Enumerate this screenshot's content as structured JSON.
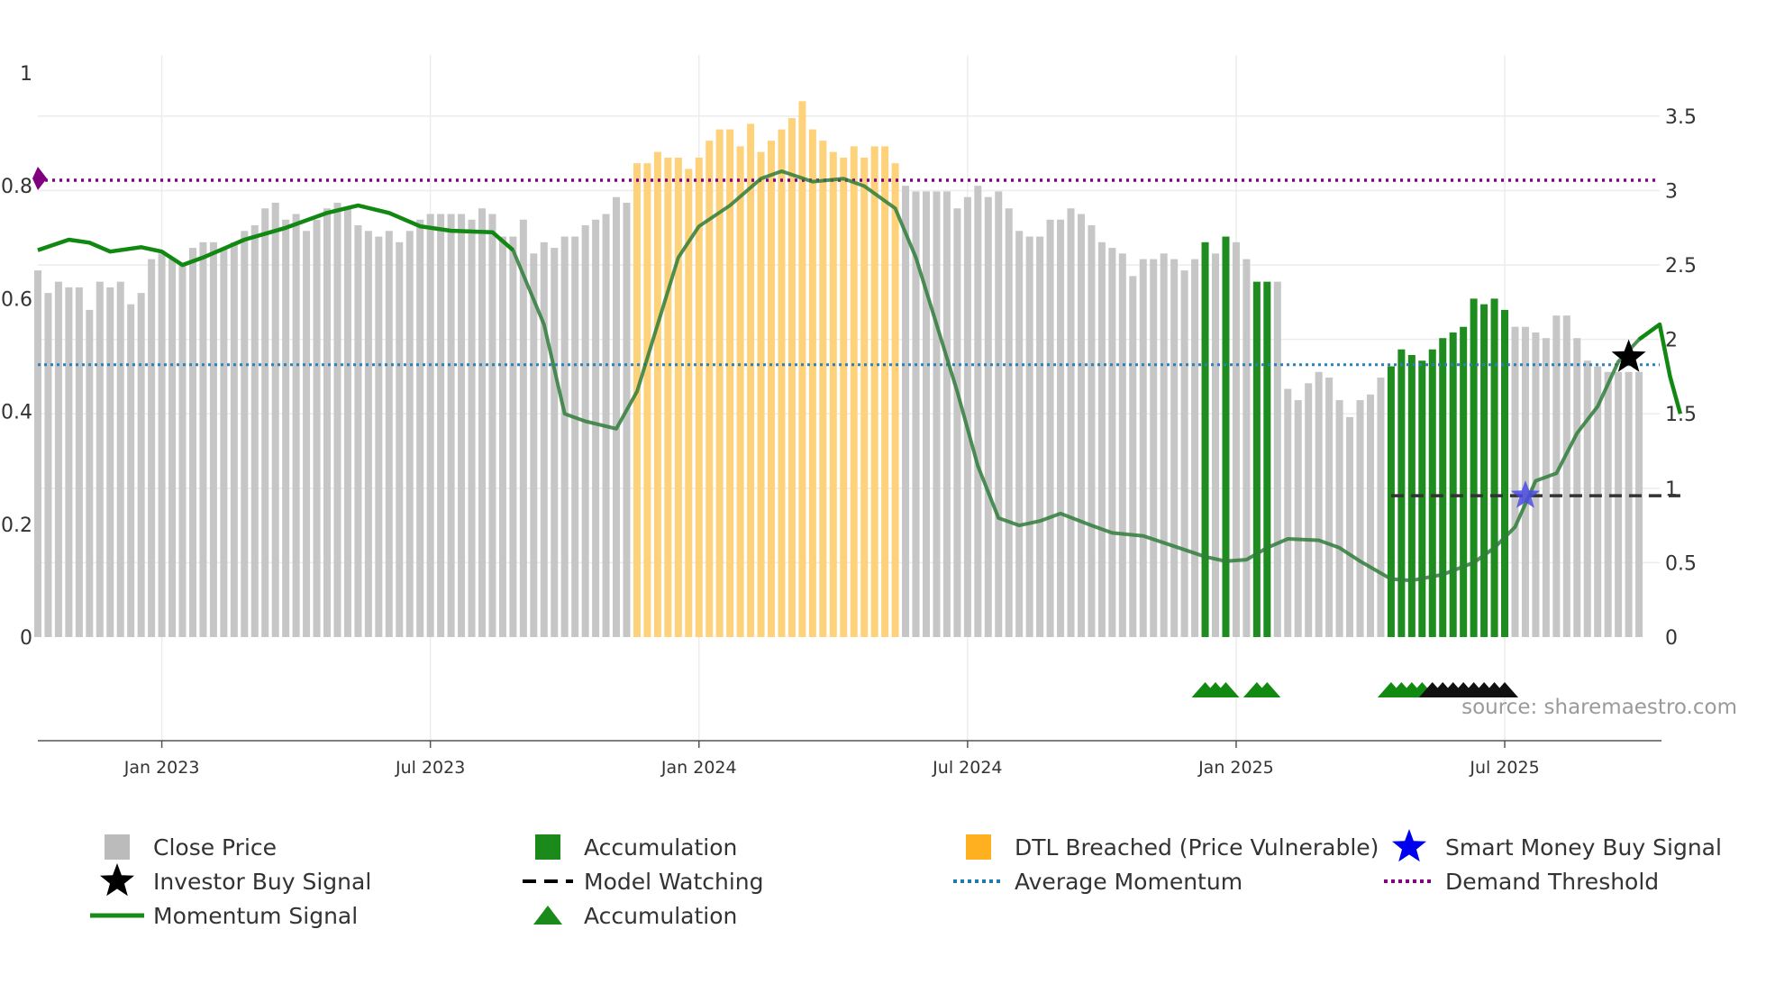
{
  "chart_data": {
    "type": "bar+line",
    "title": "",
    "source": "source: sharemaestro.com",
    "left_axis": {
      "ticks": [
        "0",
        "0.2",
        "0.4",
        "0.6",
        "0.8",
        "1"
      ],
      "values": [
        0,
        0.2,
        0.4,
        0.6,
        0.8,
        1
      ],
      "range": [
        0,
        1
      ]
    },
    "right_axis": {
      "ticks": [
        "0",
        "0.5",
        "1",
        "1.5",
        "2",
        "2.5",
        "3",
        "3.5"
      ],
      "values": [
        0,
        0.5,
        1,
        1.5,
        2,
        2.5,
        3,
        3.5
      ],
      "range": [
        0,
        3.79
      ]
    },
    "x_axis": {
      "ticks": [
        "Jan 2023",
        "Jul 2023",
        "Jan 2024",
        "Jul 2024",
        "Jan 2025",
        "Jul 2025"
      ],
      "tick_index": [
        12,
        38,
        64,
        90,
        116,
        142
      ],
      "range_index": [
        0,
        157
      ]
    },
    "weeks_start": "2022-10",
    "price_weekly": [
      0.65,
      0.61,
      0.63,
      0.62,
      0.62,
      0.58,
      0.63,
      0.62,
      0.63,
      0.59,
      0.61,
      0.67,
      0.68,
      0.67,
      0.66,
      0.69,
      0.7,
      0.7,
      0.69,
      0.7,
      0.72,
      0.73,
      0.76,
      0.77,
      0.74,
      0.75,
      0.72,
      0.74,
      0.76,
      0.77,
      0.76,
      0.73,
      0.72,
      0.71,
      0.72,
      0.7,
      0.72,
      0.74,
      0.75,
      0.75,
      0.75,
      0.75,
      0.74,
      0.76,
      0.75,
      0.71,
      0.71,
      0.74,
      0.68,
      0.7,
      0.69,
      0.71,
      0.71,
      0.73,
      0.74,
      0.75,
      0.78,
      0.77,
      0.84,
      0.84,
      0.86,
      0.85,
      0.85,
      0.83,
      0.85,
      0.88,
      0.9,
      0.9,
      0.87,
      0.91,
      0.86,
      0.88,
      0.9,
      0.92,
      0.95,
      0.9,
      0.88,
      0.86,
      0.85,
      0.87,
      0.85,
      0.87,
      0.87,
      0.84,
      0.8,
      0.79,
      0.79,
      0.79,
      0.79,
      0.76,
      0.78,
      0.8,
      0.78,
      0.79,
      0.76,
      0.72,
      0.71,
      0.71,
      0.74,
      0.74,
      0.76,
      0.75,
      0.73,
      0.7,
      0.69,
      0.68,
      0.64,
      0.67,
      0.67,
      0.68,
      0.67,
      0.65,
      0.67,
      0.7,
      0.68,
      0.71,
      0.7,
      0.67,
      0.63,
      0.63,
      0.63,
      0.44,
      0.42,
      0.45,
      0.47,
      0.46,
      0.42,
      0.39,
      0.42,
      0.43,
      0.46,
      0.48,
      0.51,
      0.5,
      0.49,
      0.51,
      0.53,
      0.54,
      0.55,
      0.6,
      0.59,
      0.6,
      0.58,
      0.55,
      0.55,
      0.54,
      0.53,
      0.57,
      0.57,
      0.53,
      0.49,
      0.48,
      0.47,
      0.47,
      0.47,
      0.47
    ],
    "zones": [
      {
        "label": "DTL Breached (Price Vulnerable)",
        "color": "#f5b400",
        "from_index": 58,
        "to_index": 83
      },
      {
        "label": "Accumulation",
        "color": "#1a8a1a",
        "from_index": 113,
        "to_index": 113
      },
      {
        "label": "Accumulation",
        "color": "#1a8a1a",
        "from_index": 115,
        "to_index": 115
      },
      {
        "label": "Accumulation",
        "color": "#1a8a1a",
        "from_index": 118,
        "to_index": 119
      },
      {
        "label": "Accumulation",
        "color": "#1a8a1a",
        "from_index": 131,
        "to_index": 142
      }
    ],
    "momentum_signal": [
      [
        0,
        2.6
      ],
      [
        3,
        2.67
      ],
      [
        5,
        2.65
      ],
      [
        7,
        2.59
      ],
      [
        10,
        2.62
      ],
      [
        12,
        2.59
      ],
      [
        14,
        2.5
      ],
      [
        16,
        2.55
      ],
      [
        20,
        2.67
      ],
      [
        24,
        2.75
      ],
      [
        28,
        2.85
      ],
      [
        31,
        2.9
      ],
      [
        34,
        2.85
      ],
      [
        37,
        2.76
      ],
      [
        40,
        2.73
      ],
      [
        44,
        2.72
      ],
      [
        46,
        2.6
      ],
      [
        49,
        2.1
      ],
      [
        51,
        1.5
      ],
      [
        53,
        1.45
      ],
      [
        56,
        1.4
      ],
      [
        58,
        1.65
      ],
      [
        60,
        2.1
      ],
      [
        62,
        2.55
      ],
      [
        64,
        2.76
      ],
      [
        67,
        2.9
      ],
      [
        70,
        3.08
      ],
      [
        72,
        3.13
      ],
      [
        75,
        3.06
      ],
      [
        78,
        3.08
      ],
      [
        80,
        3.03
      ],
      [
        83,
        2.88
      ],
      [
        85,
        2.55
      ],
      [
        87,
        2.1
      ],
      [
        89,
        1.65
      ],
      [
        91,
        1.15
      ],
      [
        93,
        0.8
      ],
      [
        95,
        0.75
      ],
      [
        97,
        0.78
      ],
      [
        99,
        0.83
      ],
      [
        102,
        0.75
      ],
      [
        104,
        0.7
      ],
      [
        107,
        0.68
      ],
      [
        110,
        0.61
      ],
      [
        113,
        0.54
      ],
      [
        115,
        0.51
      ],
      [
        117,
        0.52
      ],
      [
        119,
        0.6
      ],
      [
        121,
        0.66
      ],
      [
        124,
        0.65
      ],
      [
        126,
        0.6
      ],
      [
        128,
        0.51
      ],
      [
        131,
        0.39
      ],
      [
        133,
        0.38
      ],
      [
        136,
        0.42
      ],
      [
        139,
        0.5
      ],
      [
        141,
        0.6
      ],
      [
        143,
        0.74
      ],
      [
        145,
        1.05
      ],
      [
        147,
        1.1
      ],
      [
        149,
        1.37
      ],
      [
        151,
        1.55
      ],
      [
        153,
        1.85
      ],
      [
        155,
        2.0
      ],
      [
        157,
        2.1
      ],
      [
        158,
        1.75
      ],
      [
        159,
        1.5
      ]
    ],
    "momentum_green_ranges": [
      [
        0,
        46
      ],
      [
        155,
        159
      ]
    ],
    "average_momentum": 1.83,
    "demand_threshold": 0.81,
    "model_watching": {
      "level": 0.95,
      "from_index": 131,
      "to_index": 159
    },
    "investor_buy_signal": {
      "index": 154,
      "value": 1.88
    },
    "smart_money_buy_signal": {
      "index": 144,
      "value": 0.95
    },
    "accumulation_triangles": [
      113,
      114,
      115,
      118,
      119,
      131,
      132,
      133,
      134,
      135,
      136,
      137,
      138,
      139,
      140,
      141,
      142
    ],
    "black_triangles": [
      135,
      136,
      137,
      138,
      139,
      140,
      141,
      142
    ],
    "legend": [
      {
        "label": "Close Price",
        "symbol": "square",
        "color": "#bbbbbb"
      },
      {
        "label": "Accumulation",
        "symbol": "square",
        "color": "#1a8a1a"
      },
      {
        "label": "DTL Breached (Price Vulnerable)",
        "symbol": "square",
        "color": "#ffb020"
      },
      {
        "label": "Smart Money Buy Signal",
        "symbol": "star",
        "color": "#0000ee"
      },
      {
        "label": "Investor Buy Signal",
        "symbol": "star",
        "color": "#000000"
      },
      {
        "label": "Model Watching",
        "symbol": "dash",
        "color": "#000000"
      },
      {
        "label": "Average Momentum",
        "symbol": "dot",
        "color": "#1f77b4"
      },
      {
        "label": "Demand Threshold",
        "symbol": "dot",
        "color": "#800080"
      },
      {
        "label": "Momentum Signal",
        "symbol": "line",
        "color": "#1a8a1a"
      },
      {
        "label": "Accumulation",
        "symbol": "triangle",
        "color": "#1a8a1a"
      }
    ]
  }
}
